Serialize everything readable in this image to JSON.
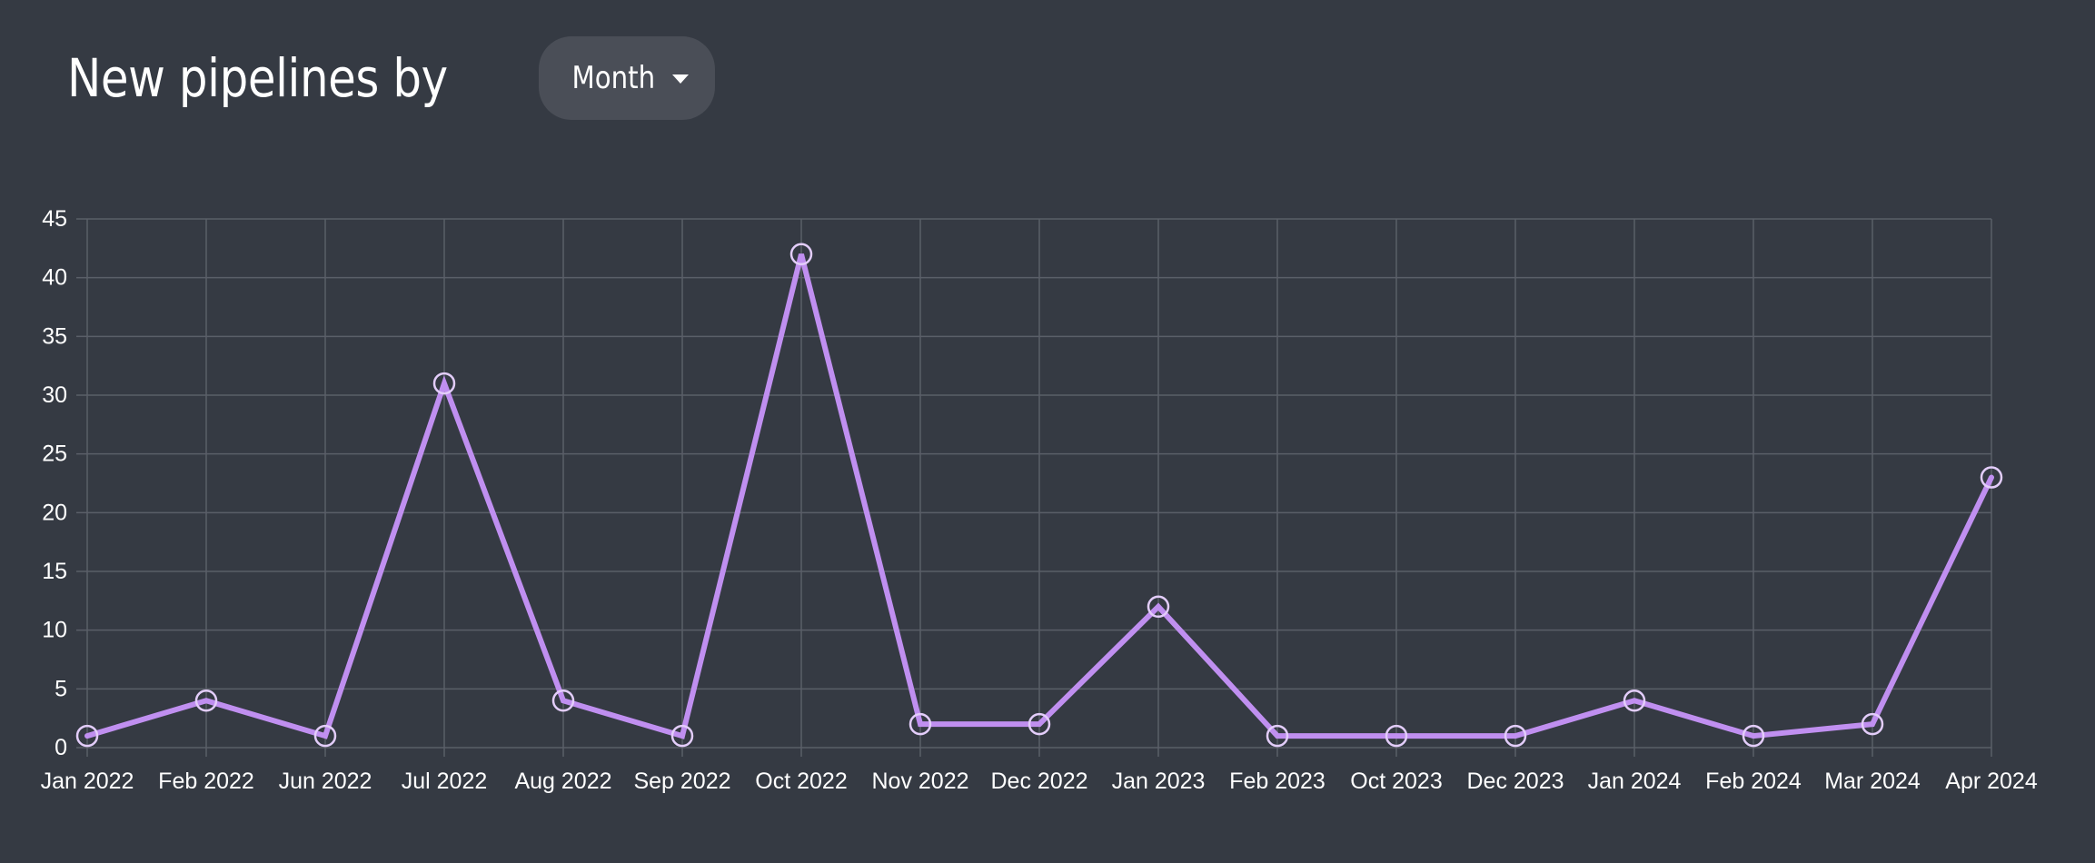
{
  "header": {
    "title": "New pipelines by",
    "period_selector": {
      "selected": "Month",
      "icon": "caret-down-icon"
    }
  },
  "colors": {
    "background": "#353a43",
    "line": "#c08ff0",
    "grid": "#5a5f68",
    "text": "#ffffff",
    "button": "#4a4e57"
  },
  "chart_data": {
    "type": "line",
    "title": "",
    "xlabel": "",
    "ylabel": "",
    "ylim": [
      0,
      45
    ],
    "yticks": [
      0,
      5,
      10,
      15,
      20,
      25,
      30,
      35,
      40,
      45
    ],
    "grid": true,
    "legend": "none",
    "categories": [
      "Jan 2022",
      "Feb 2022",
      "Jun 2022",
      "Jul 2022",
      "Aug 2022",
      "Sep 2022",
      "Oct 2022",
      "Nov 2022",
      "Dec 2022",
      "Jan 2023",
      "Feb 2023",
      "Oct 2023",
      "Dec 2023",
      "Jan 2024",
      "Feb 2024",
      "Mar 2024",
      "Apr 2024"
    ],
    "series": [
      {
        "values": [
          1,
          4,
          1,
          31,
          4,
          1,
          42,
          2,
          2,
          12,
          1,
          1,
          1,
          4,
          1,
          2,
          23
        ]
      }
    ]
  }
}
